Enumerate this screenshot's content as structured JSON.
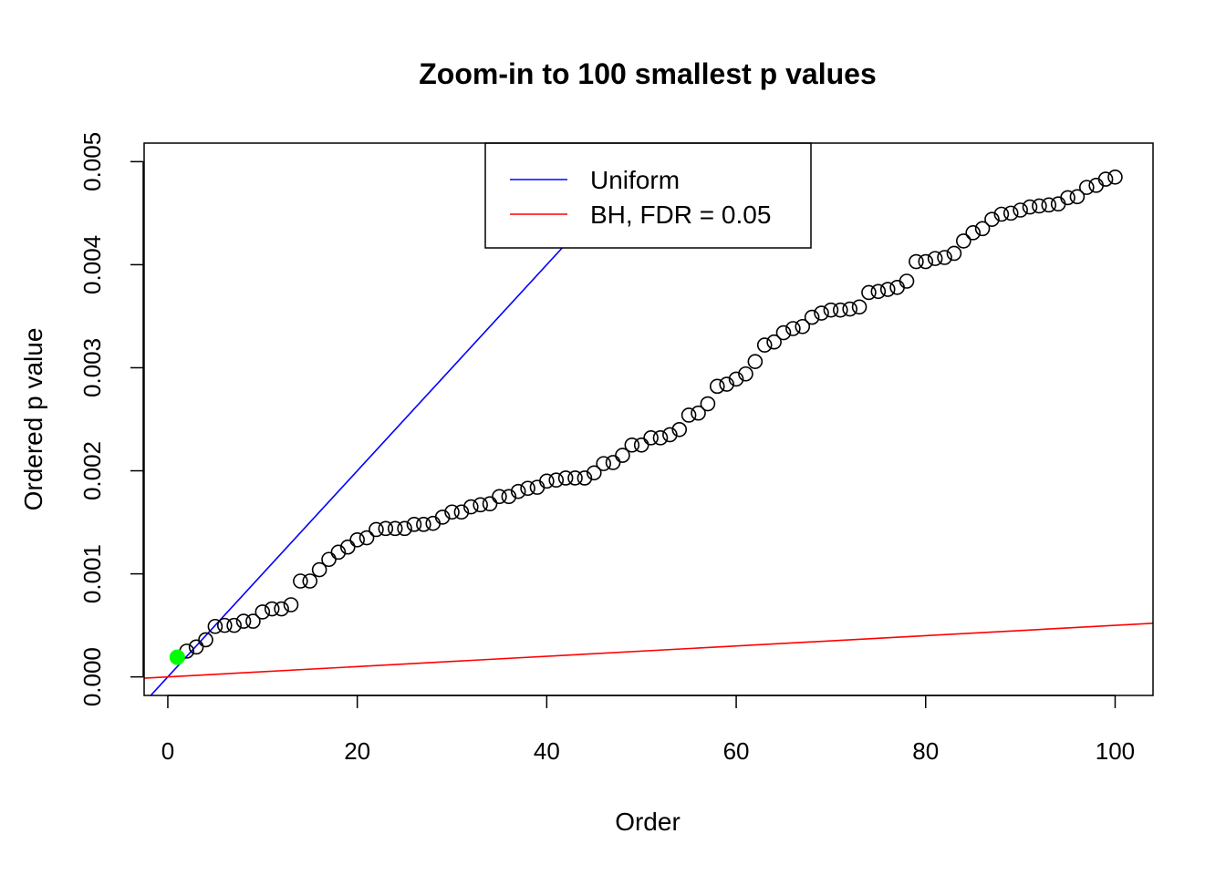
{
  "chart_data": {
    "type": "scatter",
    "title": "Zoom-in to 100 smallest p values",
    "xlabel": "Order",
    "ylabel": "Ordered p value",
    "xlim": [
      -2.5,
      104
    ],
    "ylim": [
      -0.00018,
      0.00518
    ],
    "xticks": [
      0,
      20,
      40,
      60,
      80,
      100
    ],
    "xtick_labels": [
      "0",
      "20",
      "40",
      "60",
      "80",
      "100"
    ],
    "yticks": [
      0,
      0.001,
      0.002,
      0.003,
      0.004,
      0.005
    ],
    "ytick_labels": [
      "0.000",
      "0.001",
      "0.002",
      "0.003",
      "0.004",
      "0.005"
    ],
    "grid": false,
    "legend_position": "top-center",
    "legend": [
      {
        "label": "Uniform",
        "color": "#0000ff"
      },
      {
        "label": "BH, FDR = 0.05",
        "color": "#ff0000"
      }
    ],
    "lines": [
      {
        "name": "Uniform",
        "intercept": 0,
        "slope": 0.0001,
        "color": "#0000ff"
      },
      {
        "name": "BH, FDR = 0.05",
        "intercept": 0,
        "slope": 5e-06,
        "color": "#ff0000"
      }
    ],
    "highlight": {
      "x": 1,
      "y": 0.00019,
      "color": "#00ff00"
    },
    "points": {
      "x": [
        1,
        2,
        3,
        4,
        5,
        6,
        7,
        8,
        9,
        10,
        11,
        12,
        13,
        14,
        15,
        16,
        17,
        18,
        19,
        20,
        21,
        22,
        23,
        24,
        25,
        26,
        27,
        28,
        29,
        30,
        31,
        32,
        33,
        34,
        35,
        36,
        37,
        38,
        39,
        40,
        41,
        42,
        43,
        44,
        45,
        46,
        47,
        48,
        49,
        50,
        51,
        52,
        53,
        54,
        55,
        56,
        57,
        58,
        59,
        60,
        61,
        62,
        63,
        64,
        65,
        66,
        67,
        68,
        69,
        70,
        71,
        72,
        73,
        74,
        75,
        76,
        77,
        78,
        79,
        80,
        81,
        82,
        83,
        84,
        85,
        86,
        87,
        88,
        89,
        90,
        91,
        92,
        93,
        94,
        95,
        96,
        97,
        98,
        99,
        100
      ],
      "y": [
        0.00019,
        0.00025,
        0.00029,
        0.00036,
        0.00049,
        0.0005,
        0.0005,
        0.00054,
        0.00054,
        0.00063,
        0.00066,
        0.00066,
        0.0007,
        0.00093,
        0.00093,
        0.00104,
        0.00114,
        0.00121,
        0.00126,
        0.00133,
        0.00135,
        0.00143,
        0.00144,
        0.00144,
        0.00144,
        0.00148,
        0.00148,
        0.00149,
        0.00155,
        0.0016,
        0.0016,
        0.00165,
        0.00167,
        0.00168,
        0.00175,
        0.00175,
        0.0018,
        0.00183,
        0.00184,
        0.0019,
        0.00191,
        0.00193,
        0.00193,
        0.00193,
        0.00198,
        0.00207,
        0.00208,
        0.00215,
        0.00225,
        0.00225,
        0.00232,
        0.00232,
        0.00235,
        0.0024,
        0.00254,
        0.00256,
        0.00265,
        0.00282,
        0.00284,
        0.00289,
        0.00294,
        0.00306,
        0.00322,
        0.00325,
        0.00334,
        0.00338,
        0.0034,
        0.00349,
        0.00353,
        0.00356,
        0.00356,
        0.00357,
        0.00359,
        0.00373,
        0.00374,
        0.00376,
        0.00378,
        0.00384,
        0.00403,
        0.00403,
        0.00406,
        0.00407,
        0.00411,
        0.00423,
        0.00431,
        0.00435,
        0.00444,
        0.00449,
        0.0045,
        0.00453,
        0.00456,
        0.00457,
        0.00458,
        0.00459,
        0.00465,
        0.00466,
        0.00475,
        0.00477,
        0.00483,
        0.00485
      ],
      "marker": "open-circle",
      "color": "#000000"
    }
  }
}
